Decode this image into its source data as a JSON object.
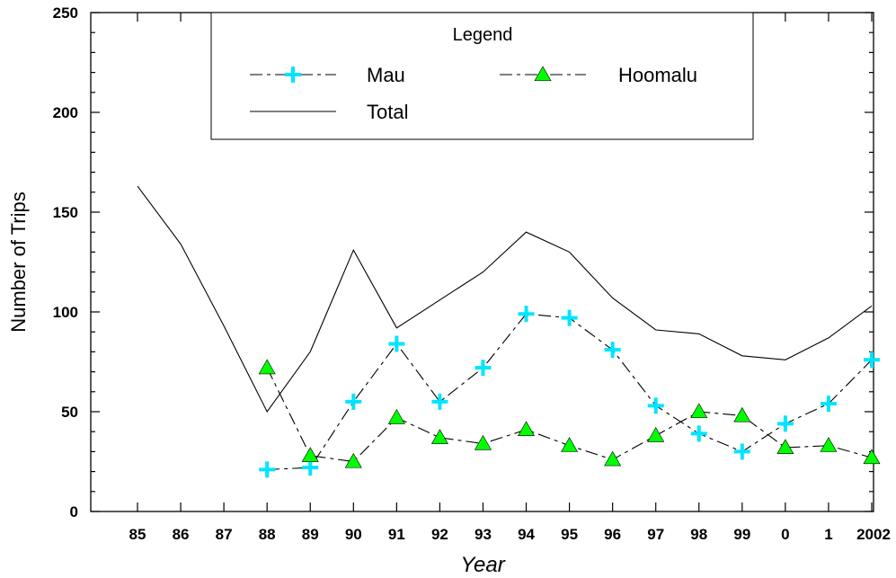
{
  "chart_data": {
    "type": "line",
    "xlabel": "Year",
    "ylabel": "Number of Trips",
    "ylim": [
      0,
      250
    ],
    "y_ticks": [
      "0",
      "50",
      "100",
      "150",
      "200",
      "250"
    ],
    "categories": [
      "85",
      "86",
      "87",
      "88",
      "89",
      "90",
      "91",
      "92",
      "93",
      "94",
      "95",
      "96",
      "97",
      "98",
      "99",
      "0",
      "1",
      "2002"
    ],
    "grid": false,
    "legend": {
      "title": "Legend",
      "placement": "top-center"
    },
    "series": [
      {
        "name": "Mau",
        "line_style": "dash-dot",
        "marker": "plus",
        "color": "#00e5ff",
        "values": [
          null,
          null,
          null,
          21,
          22,
          55,
          84,
          55,
          72,
          99,
          97,
          81,
          53,
          39,
          30,
          44,
          54,
          76
        ]
      },
      {
        "name": "Hoomalu",
        "line_style": "dash-dot",
        "marker": "triangle",
        "color": "#00ff00",
        "values": [
          null,
          null,
          null,
          72,
          28,
          25,
          47,
          37,
          34,
          41,
          33,
          26,
          38,
          50,
          48,
          32,
          33,
          27
        ]
      },
      {
        "name": "Total",
        "line_style": "solid",
        "marker": "none",
        "color": "#000000",
        "values": [
          163,
          134,
          93,
          50,
          80,
          131,
          92,
          106,
          120,
          140,
          130,
          107,
          91,
          89,
          78,
          76,
          87,
          103
        ]
      }
    ]
  }
}
